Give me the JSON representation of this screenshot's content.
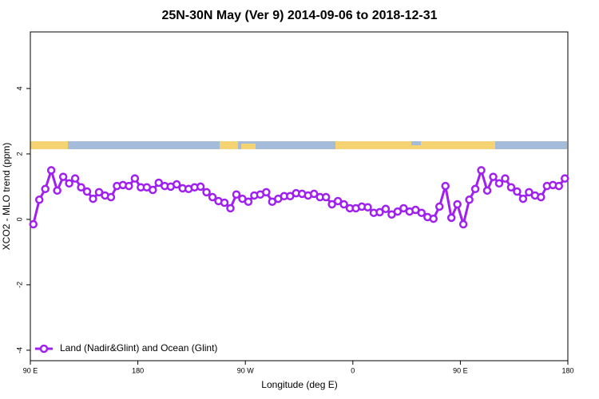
{
  "chart_data": {
    "type": "line",
    "title": "25N-30N May (Ver 9)   2014-09-06 to 2018-12-31",
    "xlabel": "Longitude (deg E)",
    "ylabel": "XCO2 - MLO trend (ppm)",
    "xlim": [
      90,
      540
    ],
    "ylim": [
      -4.32,
      5.73
    ],
    "xticks": [
      {
        "value": 90,
        "label": "90 E"
      },
      180,
      {
        "value": 270,
        "label": "90 W"
      },
      {
        "value": 360,
        "label": "0"
      },
      {
        "value": 450,
        "label": "90 E"
      },
      {
        "value": 540,
        "label": "180"
      }
    ],
    "yticks": [
      -4,
      -2,
      0,
      2,
      4
    ],
    "legend": "bottom-left",
    "x": [
      92.5,
      97.5,
      102.5,
      107.5,
      112.5,
      117.5,
      122.5,
      127.5,
      132.5,
      137.5,
      142.5,
      147.5,
      152.5,
      157.5,
      162.5,
      167.5,
      172.5,
      177.5,
      182.5,
      187.5,
      192.5,
      197.5,
      202.5,
      207.5,
      212.5,
      217.5,
      222.5,
      227.5,
      232.5,
      237.5,
      242.5,
      247.5,
      252.5,
      257.5,
      262.5,
      267.5,
      272.5,
      277.5,
      282.5,
      287.5,
      292.5,
      297.5,
      302.5,
      307.5,
      312.5,
      317.5,
      322.5,
      327.5,
      332.5,
      337.5,
      342.5,
      347.5,
      352.5,
      357.5,
      362.5,
      367.5,
      372.5,
      377.5,
      382.5,
      387.5,
      392.5,
      397.5,
      402.5,
      407.5,
      412.5,
      417.5,
      422.5,
      427.5,
      432.5,
      437.5,
      442.5,
      447.5,
      452.5,
      457.5,
      462.5,
      467.5,
      472.5,
      477.5,
      482.5,
      487.5,
      492.5,
      497.5,
      502.5,
      507.5,
      512.5,
      517.5,
      522.5,
      527.5,
      532.5,
      537.5
    ],
    "series": [
      {
        "name": "Land (Nadir&Glint) and Ocean (Glint)",
        "color": "#a020f0",
        "values": [
          -0.15,
          0.6,
          0.93,
          1.5,
          0.88,
          1.3,
          1.1,
          1.25,
          0.98,
          0.85,
          0.63,
          0.83,
          0.73,
          0.68,
          1.02,
          1.05,
          1.02,
          1.25,
          0.98,
          0.98,
          0.9,
          1.12,
          1.02,
          1.0,
          1.07,
          0.95,
          0.93,
          0.98,
          1.0,
          0.83,
          0.68,
          0.56,
          0.51,
          0.34,
          0.76,
          0.63,
          0.54,
          0.73,
          0.76,
          0.83,
          0.54,
          0.63,
          0.71,
          0.71,
          0.8,
          0.78,
          0.73,
          0.78,
          0.68,
          0.68,
          0.46,
          0.56,
          0.46,
          0.34,
          0.34,
          0.39,
          0.37,
          0.2,
          0.22,
          0.32,
          0.15,
          0.24,
          0.34,
          0.24,
          0.29,
          0.2,
          0.07,
          0.02,
          0.39,
          1.02,
          0.05,
          0.46,
          -0.15,
          0.6,
          0.93,
          1.5,
          0.88,
          1.3,
          1.1,
          1.25,
          0.98,
          0.85,
          0.63,
          0.83,
          0.73,
          0.68,
          1.02,
          1.05,
          1.02,
          1.25
        ]
      }
    ]
  }
}
